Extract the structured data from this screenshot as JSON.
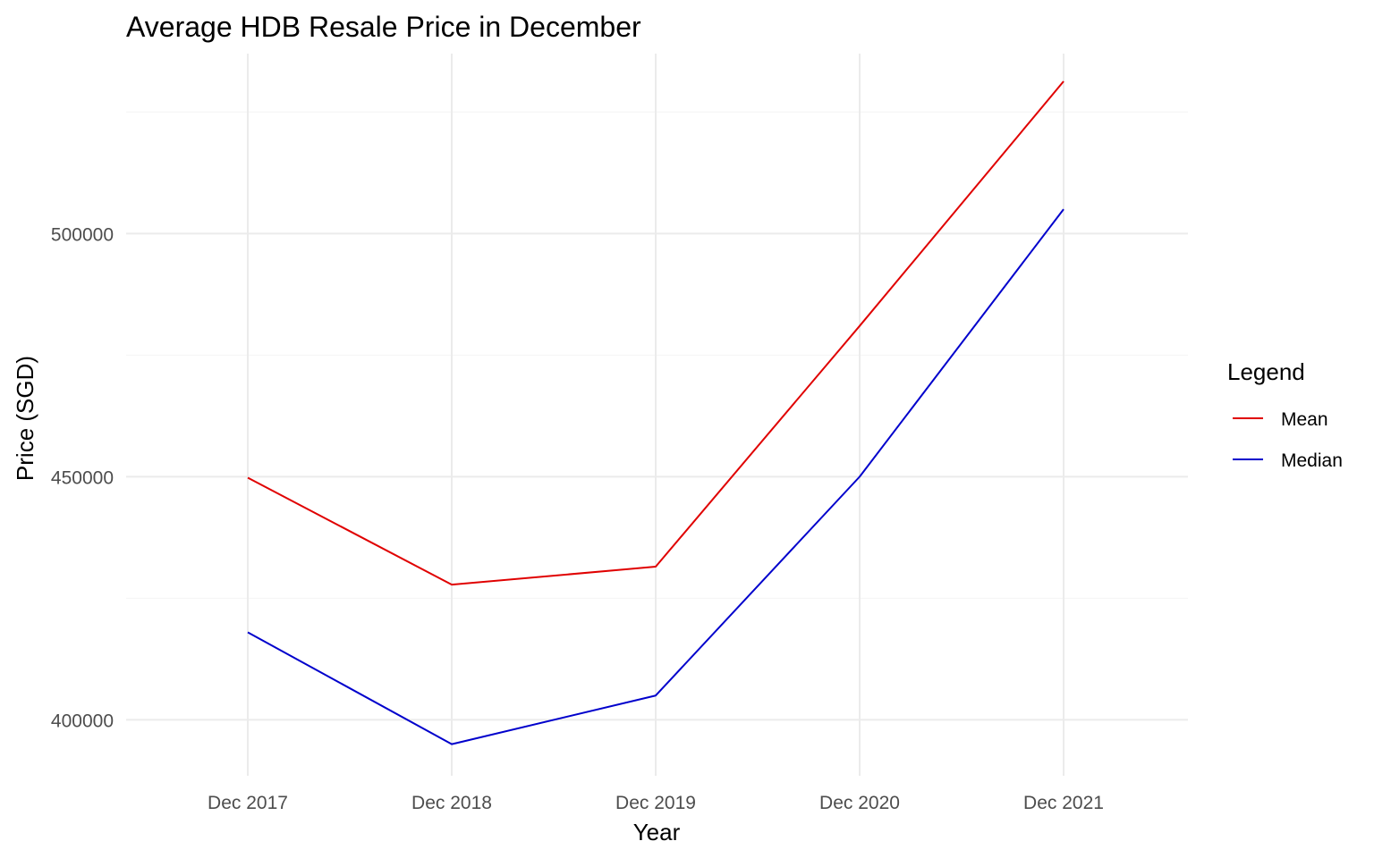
{
  "chart_data": {
    "type": "line",
    "title": "Average HDB Resale Price in December",
    "xlabel": "Year",
    "ylabel": "Price (SGD)",
    "categories": [
      "Dec 2017",
      "Dec 2018",
      "Dec 2019",
      "Dec 2020",
      "Dec 2021"
    ],
    "series": [
      {
        "name": "Mean",
        "color": "#e00000",
        "values": [
          449800,
          427800,
          431500,
          481000,
          531300
        ]
      },
      {
        "name": "Median",
        "color": "#0000cc",
        "values": [
          418000,
          395000,
          405000,
          450000,
          505000
        ]
      }
    ],
    "ylim": [
      388500,
      537000
    ],
    "yticks": [
      400000,
      450000,
      500000
    ],
    "yticks_labels": [
      "400000",
      "450000",
      "500000"
    ],
    "legend": {
      "title": "Legend",
      "position": "right"
    },
    "grid": true
  }
}
